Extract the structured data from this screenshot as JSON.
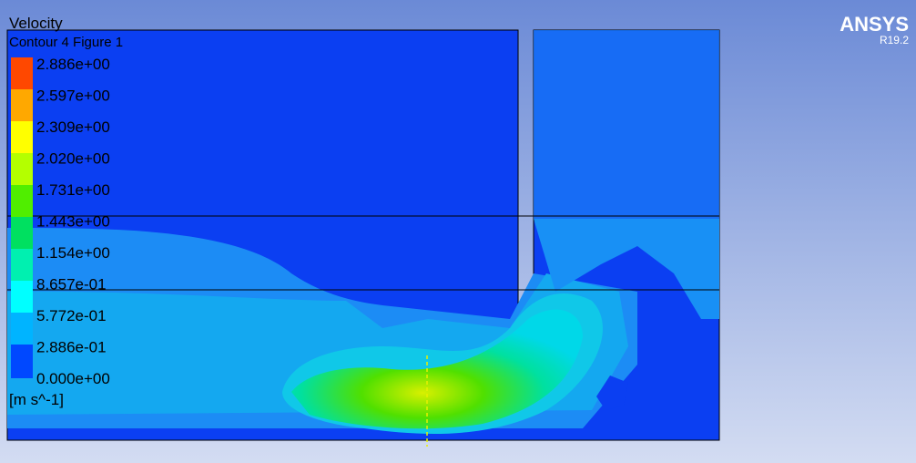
{
  "title": "Velocity",
  "subtitle": "Contour 4 Figure 1",
  "legend": {
    "labels": [
      "2.886e+00",
      "2.597e+00",
      "2.309e+00",
      "2.020e+00",
      "1.731e+00",
      "1.443e+00",
      "1.154e+00",
      "8.657e-01",
      "5.772e-01",
      "2.886e-01",
      "0.000e+00"
    ],
    "unit": "[m s^-1]"
  },
  "brand": {
    "name": "ANSYS",
    "version": "R19.2"
  }
}
